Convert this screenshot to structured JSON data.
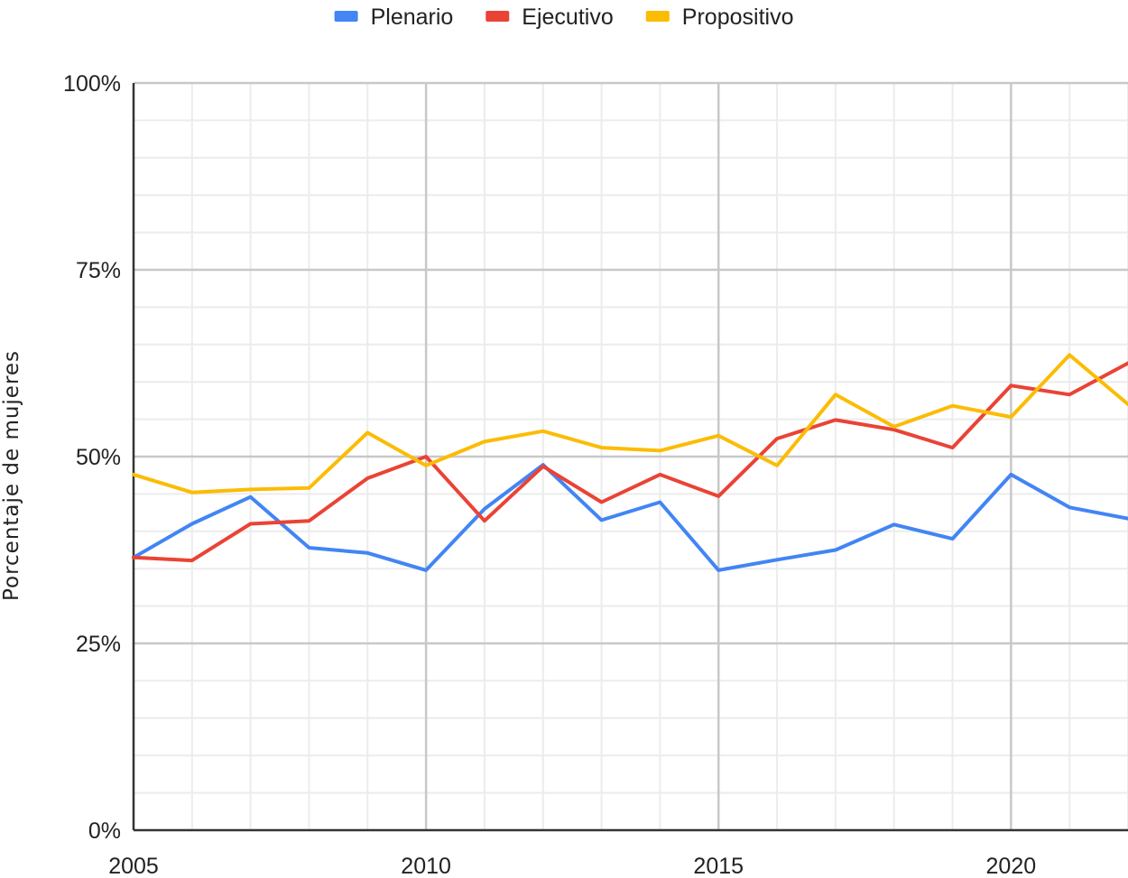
{
  "chart_data": {
    "type": "line",
    "title": "",
    "xlabel": "",
    "ylabel": "Porcentaje de mujeres",
    "x": [
      2005,
      2006,
      2007,
      2008,
      2009,
      2010,
      2011,
      2012,
      2013,
      2014,
      2015,
      2016,
      2017,
      2018,
      2019,
      2020,
      2021,
      2022
    ],
    "xlim": [
      2005,
      2022
    ],
    "ylim": [
      0,
      100
    ],
    "x_ticks": [
      "2005",
      "2010",
      "2015",
      "2020"
    ],
    "y_ticks": [
      "0%",
      "25%",
      "50%",
      "75%",
      "100%"
    ],
    "grid": true,
    "legend_position": "top",
    "series": [
      {
        "name": "Plenario",
        "color": "#4285f4",
        "values": [
          36.5,
          41.0,
          44.6,
          37.8,
          37.1,
          34.8,
          43.0,
          48.9,
          41.5,
          43.9,
          34.8,
          36.2,
          37.5,
          40.9,
          39.0,
          47.6,
          43.2,
          41.7
        ]
      },
      {
        "name": "Ejecutivo",
        "color": "#ea4335",
        "values": [
          36.5,
          36.1,
          41.0,
          41.4,
          47.1,
          50.0,
          41.4,
          48.7,
          43.9,
          47.6,
          44.7,
          52.4,
          54.9,
          53.6,
          51.2,
          59.5,
          58.3,
          62.5
        ]
      },
      {
        "name": "Propositivo",
        "color": "#fbbc04",
        "values": [
          47.6,
          45.2,
          45.6,
          45.8,
          53.2,
          48.8,
          52.0,
          53.4,
          51.2,
          50.8,
          52.8,
          48.8,
          58.3,
          54.0,
          56.8,
          55.3,
          63.6,
          57.0
        ]
      }
    ]
  }
}
